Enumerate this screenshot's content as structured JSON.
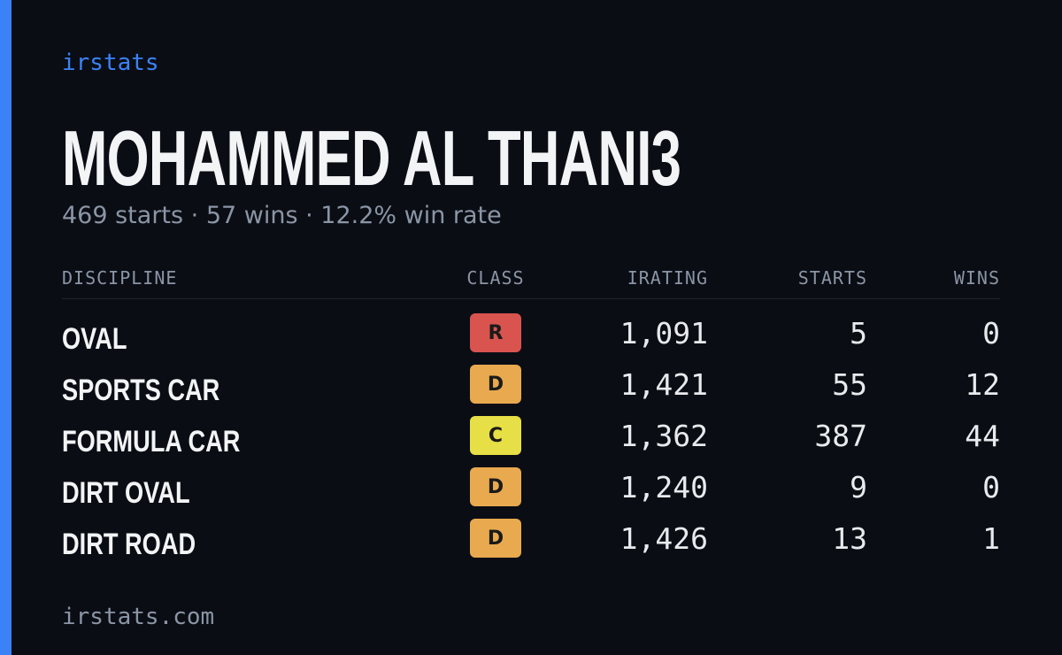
{
  "brand": "irstats",
  "title": "MOHAMMED AL THANI3",
  "subtitle": "469 starts · 57 wins · 12.2% win rate",
  "table": {
    "headers": [
      "DISCIPLINE",
      "CLASS",
      "IRATING",
      "STARTS",
      "WINS"
    ],
    "rows": [
      {
        "discipline": "OVAL",
        "class": "R",
        "class_color": "#d9534f",
        "irating": "1,091",
        "starts": "5",
        "wins": "0"
      },
      {
        "discipline": "SPORTS CAR",
        "class": "D",
        "class_color": "#e8a94f",
        "irating": "1,421",
        "starts": "55",
        "wins": "12"
      },
      {
        "discipline": "FORMULA CAR",
        "class": "C",
        "class_color": "#e6df45",
        "irating": "1,362",
        "starts": "387",
        "wins": "44"
      },
      {
        "discipline": "DIRT OVAL",
        "class": "D",
        "class_color": "#e8a94f",
        "irating": "1,240",
        "starts": "9",
        "wins": "0"
      },
      {
        "discipline": "DIRT ROAD",
        "class": "D",
        "class_color": "#e8a94f",
        "irating": "1,426",
        "starts": "13",
        "wins": "1"
      }
    ]
  },
  "footer": "irstats.com"
}
